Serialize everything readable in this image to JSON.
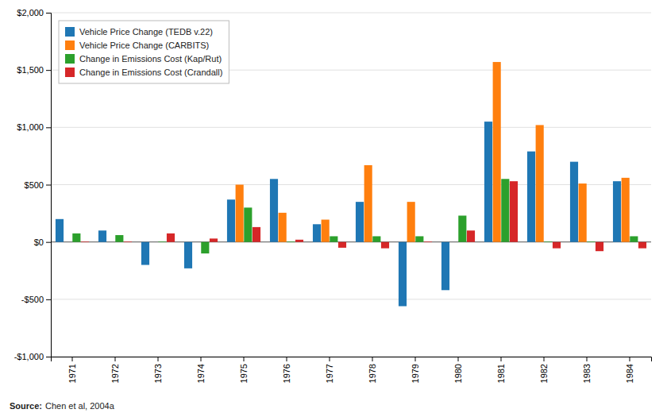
{
  "chart_data": {
    "type": "bar",
    "categories": [
      "1971",
      "1972",
      "1973",
      "1974",
      "1975",
      "1976",
      "1977",
      "1978",
      "1979",
      "1980",
      "1981",
      "1982",
      "1983",
      "1984"
    ],
    "series": [
      {
        "name": "Vehicle Price Change (TEDB v.22)",
        "values": [
          200,
          100,
          -200,
          -230,
          370,
          550,
          155,
          350,
          -560,
          -420,
          1050,
          790,
          700,
          530
        ]
      },
      {
        "name": "Vehicle Price Change (CARBITS)",
        "values": [
          0,
          0,
          0,
          0,
          500,
          255,
          195,
          670,
          350,
          0,
          1570,
          1020,
          510,
          560
        ]
      },
      {
        "name": "Change in Emissions Cost (Kap/Rut)",
        "values": [
          75,
          60,
          5,
          -100,
          300,
          5,
          50,
          50,
          50,
          230,
          550,
          5,
          5,
          50
        ]
      },
      {
        "name": "Change in Emissions Cost (Crandall)",
        "values": [
          5,
          5,
          75,
          30,
          130,
          20,
          -50,
          -55,
          5,
          100,
          530,
          -55,
          -80,
          -55
        ]
      }
    ],
    "ylim": [
      -1000,
      2000
    ],
    "yticks": [
      {
        "value": -1000,
        "label": "-$1,000"
      },
      {
        "value": -500,
        "label": "-$500"
      },
      {
        "value": 0,
        "label": "$0"
      },
      {
        "value": 500,
        "label": "$500"
      },
      {
        "value": 1000,
        "label": "$1,000"
      },
      {
        "value": 1500,
        "label": "$1,500"
      },
      {
        "value": 2000,
        "label": "$2,000"
      }
    ],
    "grid": true,
    "legend": "top-left",
    "annotations": [
      "Source:",
      "Chen et al, 2004a"
    ]
  }
}
